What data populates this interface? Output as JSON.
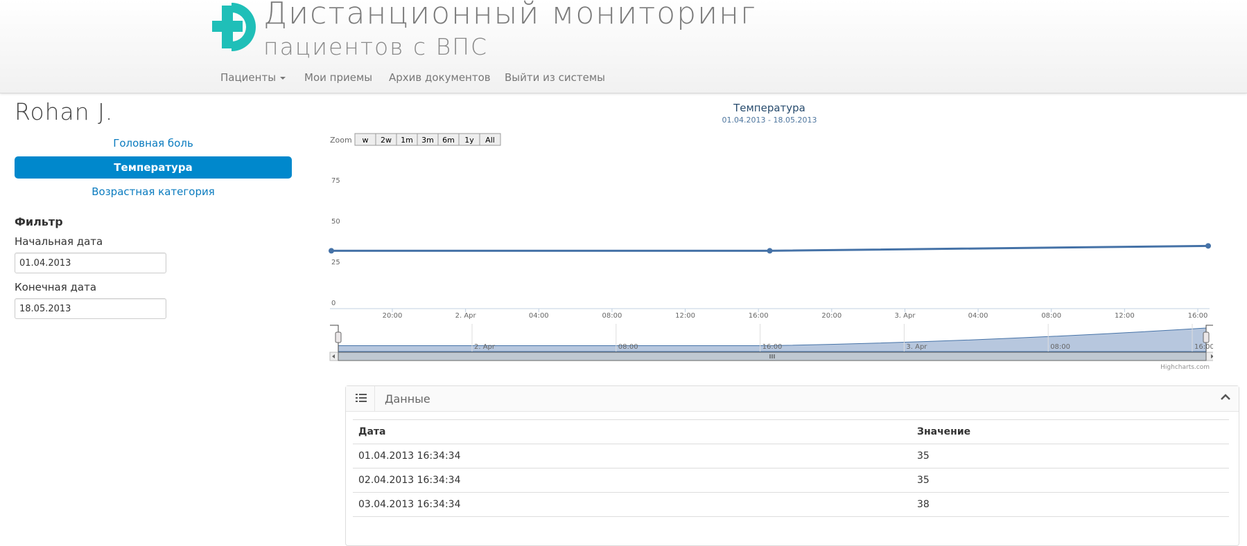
{
  "header": {
    "title_line1": "Дистанционный мониторинг",
    "title_line2": "пациентов с ВПС",
    "nav": [
      {
        "label": "Пациенты"
      },
      {
        "label": "Мои приемы"
      },
      {
        "label": "Архив документов"
      },
      {
        "label": "Выйти из системы"
      }
    ],
    "colors": {
      "logo_teal": "#1fbfb8"
    }
  },
  "patient": {
    "name": "Rohan J."
  },
  "sidebar": {
    "items": [
      {
        "label": "Головная боль",
        "active": false
      },
      {
        "label": "Температура",
        "active": true
      },
      {
        "label": "Возрастная категория",
        "active": false
      }
    ],
    "filter": {
      "heading": "Фильтр",
      "start_label": "Начальная дата",
      "start_value": "01.04.2013",
      "end_label": "Конечная дата",
      "end_value": "18.05.2013"
    }
  },
  "chart_data": {
    "type": "line",
    "title": "Температура",
    "subtitle": "01.04.2013 - 18.05.2013",
    "zoom_label": "Zoom",
    "zoom_buttons": [
      "w",
      "2w",
      "1m",
      "3m",
      "6m",
      "1y",
      "All"
    ],
    "ylim": [
      0,
      75
    ],
    "yticks": [
      0,
      25,
      50,
      75
    ],
    "xticks": [
      "20:00",
      "2. Apr",
      "04:00",
      "08:00",
      "12:00",
      "16:00",
      "20:00",
      "3. Apr",
      "04:00",
      "08:00",
      "12:00",
      "16:00"
    ],
    "navigator_ticks": [
      "2. Apr",
      "08:00",
      "16:00",
      "3. Apr",
      "08:00",
      "16:00"
    ],
    "series": [
      {
        "x": [
          "01.04.2013 16:34:34",
          "02.04.2013 16:34:34",
          "03.04.2013 16:34:34"
        ],
        "values": [
          35,
          35,
          38
        ],
        "color": "#4572a7"
      }
    ],
    "credits": "Highcharts.com"
  },
  "table": {
    "panel_title": "Данные",
    "headers": [
      "Дата",
      "Значение"
    ],
    "rows": [
      [
        "01.04.2013 16:34:34",
        "35"
      ],
      [
        "02.04.2013 16:34:34",
        "35"
      ],
      [
        "03.04.2013 16:34:34",
        "38"
      ]
    ]
  }
}
